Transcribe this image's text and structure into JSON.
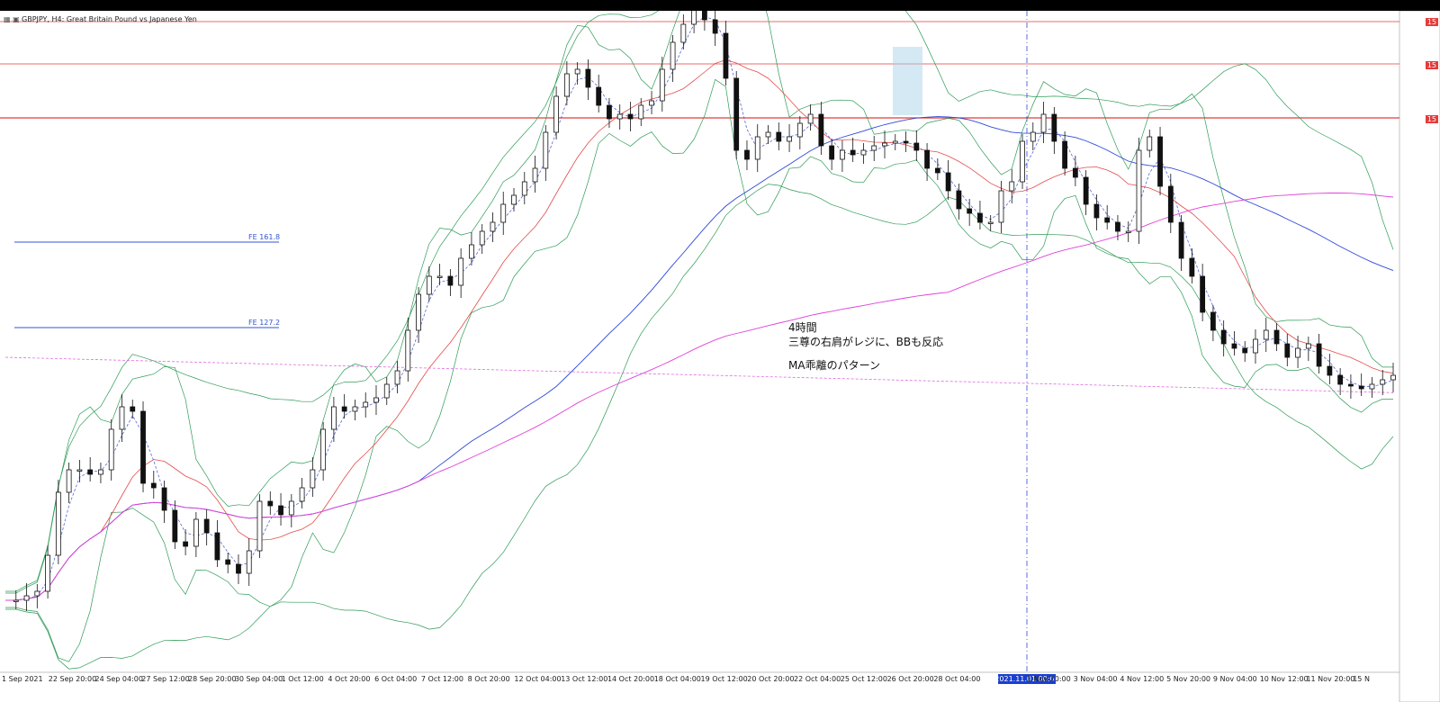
{
  "window": {
    "title": "GBPJPY, H4: Great Britain Pound vs Japanese Yen",
    "icons": [
      "chart-icon",
      "indicator-icon"
    ]
  },
  "annotation": {
    "line1": "4時間",
    "line2": "三尊の右肩がレジに、BBも反応",
    "line3": "MA乖離のパターン"
  },
  "fibo": {
    "fe161": "FE 161.8",
    "fe127": "FE 127.2"
  },
  "time_marker": "2021.11.01 00:00",
  "price_tags": [
    "15",
    "15",
    "15"
  ],
  "chart_data": {
    "type": "line",
    "symbol": "GBPJPY",
    "timeframe": "H4",
    "xlabel": "",
    "ylabel": "",
    "x_ticks": [
      "1 Sep 2021",
      "22 Sep 20:00",
      "24 Sep 04:00",
      "27 Sep 12:00",
      "28 Sep 20:00",
      "30 Sep 04:00",
      "1 Oct 12:00",
      "4 Oct 20:00",
      "6 Oct 04:00",
      "7 Oct 12:00",
      "8 Oct 20:00",
      "12 Oct 04:00",
      "13 Oct 12:00",
      "14 Oct 20:00",
      "18 Oct 04:00",
      "19 Oct 12:00",
      "20 Oct 20:00",
      "22 Oct 04:00",
      "25 Oct 12:00",
      "26 Oct 20:00",
      "28 Oct 04:00",
      "2021.11.01 00:00",
      "1 Nov 20:00",
      "3 Nov 04:00",
      "4 Nov 12:00",
      "5 Nov 20:00",
      "9 Nov 04:00",
      "10 Nov 12:00",
      "11 Nov 20:00",
      "15 N"
    ],
    "series": [
      {
        "name": "close",
        "values": [
          60,
          60,
          65,
          70,
          110,
          180,
          205,
          205,
          200,
          205,
          250,
          275,
          270,
          190,
          185,
          160,
          125,
          120,
          150,
          135,
          105,
          100,
          90,
          115,
          170,
          165,
          155,
          170,
          185,
          205,
          250,
          275,
          270,
          275,
          280,
          285,
          300,
          315,
          360,
          400,
          420,
          420,
          410,
          440,
          455,
          470,
          480,
          500,
          510,
          525,
          540,
          580,
          620,
          645,
          650,
          630,
          610,
          595,
          600,
          595,
          610,
          615,
          650,
          680,
          700,
          720,
          705,
          690,
          640,
          560,
          550,
          575,
          580,
          570,
          575,
          590,
          600,
          565,
          550,
          560,
          555,
          560,
          565,
          568,
          570,
          568,
          560,
          540,
          535,
          515,
          495,
          490,
          480,
          480,
          515,
          525,
          570,
          580,
          600,
          570,
          540,
          530,
          500,
          485,
          480,
          470,
          470,
          560,
          575,
          520,
          480,
          440,
          420,
          380,
          360,
          345,
          340,
          335,
          350,
          360,
          345,
          330,
          340,
          345,
          320,
          310,
          300,
          298,
          295,
          300,
          305,
          310
        ]
      }
    ],
    "horizontal_levels": [
      "upper",
      "middle",
      "lower"
    ],
    "grid": false
  }
}
